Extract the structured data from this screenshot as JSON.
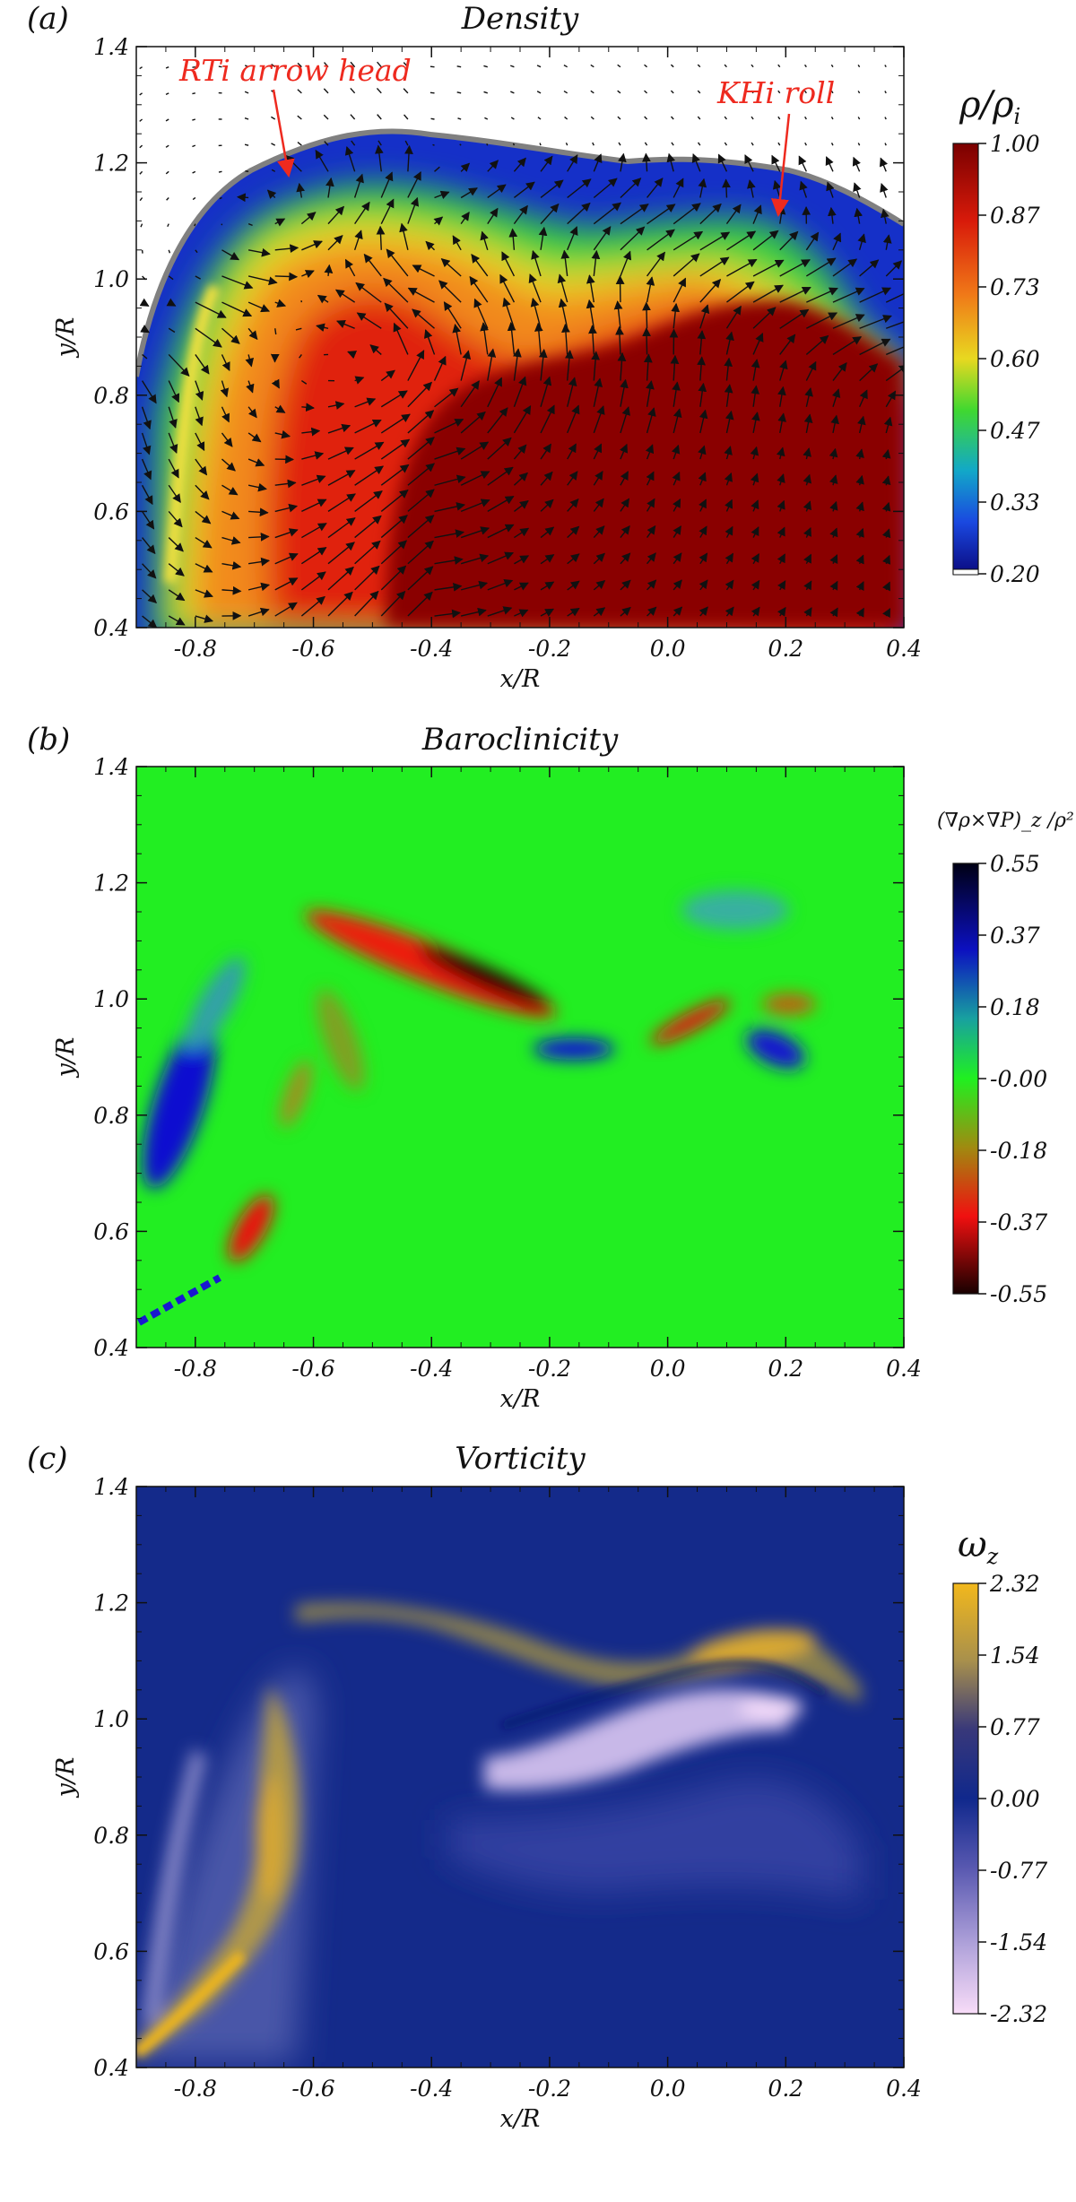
{
  "chart_data": [
    {
      "type": "heatmap",
      "panel_label": "(a)",
      "title": "Density",
      "xlabel": "x/R",
      "ylabel": "y/R",
      "xlim": [
        -0.9,
        0.4
      ],
      "ylim": [
        0.4,
        1.4
      ],
      "x_ticks": [
        "-0.8",
        "-0.6",
        "-0.4",
        "-0.2",
        "0.0",
        "0.2",
        "0.4"
      ],
      "y_ticks": [
        "0.4",
        "0.6",
        "0.8",
        "1.0",
        "1.2",
        "1.4"
      ],
      "colorbar_title": "ρ/ρ_i",
      "colorbar_ticks": [
        "1.00",
        "0.87",
        "0.73",
        "0.60",
        "0.47",
        "0.33",
        "0.20"
      ],
      "colormap": [
        "#0a0f8a",
        "#1a55e0",
        "#10c8c0",
        "#44e020",
        "#e8e020",
        "#f0a020",
        "#e83010",
        "#8a0000"
      ],
      "annotations": [
        {
          "text": "RTi arrow head",
          "x": -0.66,
          "y": 1.16
        },
        {
          "text": "KHi roll",
          "x": 0.18,
          "y": 1.1
        }
      ],
      "overlay": "velocity vectors"
    },
    {
      "type": "heatmap",
      "panel_label": "(b)",
      "title": "Baroclinicity",
      "xlabel": "x/R",
      "ylabel": "y/R",
      "xlim": [
        -0.9,
        0.4
      ],
      "ylim": [
        0.4,
        1.4
      ],
      "x_ticks": [
        "-0.8",
        "-0.6",
        "-0.4",
        "-0.2",
        "0.0",
        "0.2",
        "0.4"
      ],
      "y_ticks": [
        "0.4",
        "0.6",
        "0.8",
        "1.0",
        "1.2",
        "1.4"
      ],
      "colorbar_title": "(∇ρ×∇P)_z /ρ²",
      "colorbar_ticks": [
        "0.55",
        "0.37",
        "0.18",
        "-0.00",
        "-0.18",
        "-0.37",
        "-0.55"
      ],
      "colormap": [
        "#000018",
        "#1010c8",
        "#20b088",
        "#20f020",
        "#a08a10",
        "#f01010",
        "#200000"
      ]
    },
    {
      "type": "heatmap",
      "panel_label": "(c)",
      "title": "Vorticity",
      "xlabel": "x/R",
      "ylabel": "y/R",
      "xlim": [
        -0.9,
        0.4
      ],
      "ylim": [
        0.4,
        1.4
      ],
      "x_ticks": [
        "-0.8",
        "-0.6",
        "-0.4",
        "-0.2",
        "0.0",
        "0.2",
        "0.4"
      ],
      "y_ticks": [
        "0.4",
        "0.6",
        "0.8",
        "1.0",
        "1.2",
        "1.4"
      ],
      "colorbar_title": "ω_z",
      "colorbar_ticks": [
        "2.32",
        "1.54",
        "0.77",
        "0.00",
        "-0.77",
        "-1.54",
        "-2.32"
      ],
      "colormap": [
        "#f2b81c",
        "#9a8a50",
        "#32337a",
        "#12288a",
        "#5a5ab0",
        "#a89ad8",
        "#f8d8f8"
      ]
    }
  ]
}
